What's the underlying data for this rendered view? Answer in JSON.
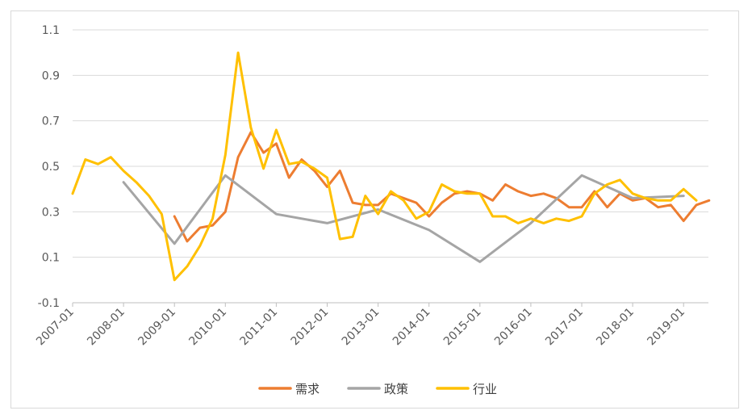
{
  "chart_data": {
    "type": "line",
    "title": "",
    "xlabel": "",
    "ylabel": "",
    "ylim": [
      -0.1,
      1.1
    ],
    "yticks": [
      "1.1",
      "0.9",
      "0.7",
      "0.5",
      "0.3",
      "0.1",
      "-0.1"
    ],
    "xticks": [
      "2007-01",
      "2008-01",
      "2009-01",
      "2010-01",
      "2011-01",
      "2012-01",
      "2013-01",
      "2014-01",
      "2015-01",
      "2016-01",
      "2017-01",
      "2018-01",
      "2019-01"
    ],
    "grid": "horizontal",
    "legend_position": "bottom",
    "series": [
      {
        "name": "需求",
        "color": "#ED7D31",
        "points": [
          [
            "2009-01",
            0.28
          ],
          [
            "2009-04",
            0.17
          ],
          [
            "2009-07",
            0.23
          ],
          [
            "2009-10",
            0.24
          ],
          [
            "2010-01",
            0.3
          ],
          [
            "2010-04",
            0.54
          ],
          [
            "2010-07",
            0.65
          ],
          [
            "2010-10",
            0.56
          ],
          [
            "2011-01",
            0.6
          ],
          [
            "2011-04",
            0.45
          ],
          [
            "2011-07",
            0.53
          ],
          [
            "2011-10",
            0.48
          ],
          [
            "2012-01",
            0.41
          ],
          [
            "2012-04",
            0.48
          ],
          [
            "2012-07",
            0.34
          ],
          [
            "2012-10",
            0.33
          ],
          [
            "2013-01",
            0.33
          ],
          [
            "2013-04",
            0.38
          ],
          [
            "2013-07",
            0.36
          ],
          [
            "2013-10",
            0.34
          ],
          [
            "2014-01",
            0.28
          ],
          [
            "2014-04",
            0.34
          ],
          [
            "2014-07",
            0.38
          ],
          [
            "2014-10",
            0.39
          ],
          [
            "2015-01",
            0.38
          ],
          [
            "2015-04",
            0.35
          ],
          [
            "2015-07",
            0.42
          ],
          [
            "2015-10",
            0.39
          ],
          [
            "2016-01",
            0.37
          ],
          [
            "2016-04",
            0.38
          ],
          [
            "2016-07",
            0.36
          ],
          [
            "2016-10",
            0.32
          ],
          [
            "2017-01",
            0.32
          ],
          [
            "2017-04",
            0.39
          ],
          [
            "2017-07",
            0.32
          ],
          [
            "2017-10",
            0.38
          ],
          [
            "2018-01",
            0.35
          ],
          [
            "2018-04",
            0.36
          ],
          [
            "2018-07",
            0.32
          ],
          [
            "2018-10",
            0.33
          ],
          [
            "2019-01",
            0.26
          ],
          [
            "2019-04",
            0.33
          ],
          [
            "2019-07",
            0.35
          ]
        ]
      },
      {
        "name": "政策",
        "color": "#A5A5A5",
        "points": [
          [
            "2008-01",
            0.43
          ],
          [
            "2009-01",
            0.16
          ],
          [
            "2010-01",
            0.46
          ],
          [
            "2011-01",
            0.29
          ],
          [
            "2012-01",
            0.25
          ],
          [
            "2013-01",
            0.31
          ],
          [
            "2014-01",
            0.22
          ],
          [
            "2015-01",
            0.08
          ],
          [
            "2016-01",
            0.25
          ],
          [
            "2017-01",
            0.46
          ],
          [
            "2018-01",
            0.36
          ],
          [
            "2019-01",
            0.37
          ]
        ]
      },
      {
        "name": "行业",
        "color": "#FFC000",
        "points": [
          [
            "2007-01",
            0.38
          ],
          [
            "2007-04",
            0.53
          ],
          [
            "2007-07",
            0.51
          ],
          [
            "2007-10",
            0.54
          ],
          [
            "2008-01",
            0.48
          ],
          [
            "2008-04",
            0.43
          ],
          [
            "2008-07",
            0.37
          ],
          [
            "2008-10",
            0.29
          ],
          [
            "2009-01",
            0.0
          ],
          [
            "2009-04",
            0.06
          ],
          [
            "2009-07",
            0.15
          ],
          [
            "2009-10",
            0.27
          ],
          [
            "2010-01",
            0.55
          ],
          [
            "2010-04",
            1.0
          ],
          [
            "2010-07",
            0.67
          ],
          [
            "2010-10",
            0.49
          ],
          [
            "2011-01",
            0.66
          ],
          [
            "2011-04",
            0.51
          ],
          [
            "2011-07",
            0.52
          ],
          [
            "2011-10",
            0.49
          ],
          [
            "2012-01",
            0.45
          ],
          [
            "2012-04",
            0.18
          ],
          [
            "2012-07",
            0.19
          ],
          [
            "2012-10",
            0.37
          ],
          [
            "2013-01",
            0.29
          ],
          [
            "2013-04",
            0.39
          ],
          [
            "2013-07",
            0.35
          ],
          [
            "2013-10",
            0.27
          ],
          [
            "2014-01",
            0.3
          ],
          [
            "2014-04",
            0.42
          ],
          [
            "2014-07",
            0.39
          ],
          [
            "2014-10",
            0.38
          ],
          [
            "2015-01",
            0.38
          ],
          [
            "2015-04",
            0.28
          ],
          [
            "2015-07",
            0.28
          ],
          [
            "2015-10",
            0.25
          ],
          [
            "2016-01",
            0.27
          ],
          [
            "2016-04",
            0.25
          ],
          [
            "2016-07",
            0.27
          ],
          [
            "2016-10",
            0.26
          ],
          [
            "2017-01",
            0.28
          ],
          [
            "2017-04",
            0.38
          ],
          [
            "2017-07",
            0.42
          ],
          [
            "2017-10",
            0.44
          ],
          [
            "2018-01",
            0.38
          ],
          [
            "2018-04",
            0.36
          ],
          [
            "2018-07",
            0.35
          ],
          [
            "2018-10",
            0.35
          ],
          [
            "2019-01",
            0.4
          ],
          [
            "2019-04",
            0.35
          ]
        ]
      }
    ]
  }
}
